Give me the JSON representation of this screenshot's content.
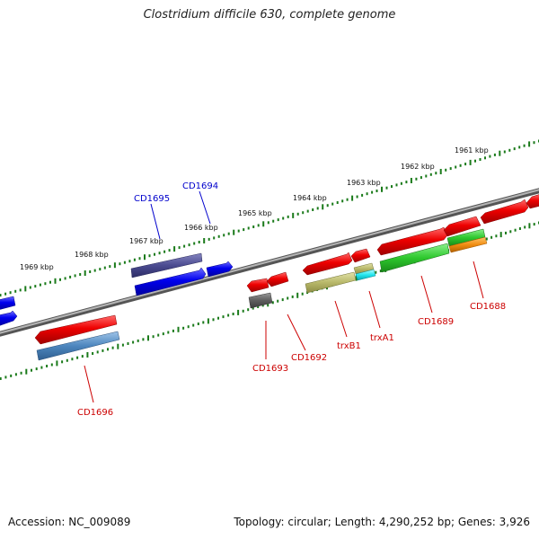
{
  "title": "Clostridium difficile 630, complete genome",
  "footer": {
    "accession": "Accession: NC_009089",
    "topology": "Topology: circular; Length: 4,290,252 bp; Genes: 3,926"
  },
  "scale": {
    "unit": "kbp",
    "ticks": [
      "1961 kbp",
      "1962 kbp",
      "1963 kbp",
      "1964 kbp",
      "1965 kbp",
      "1966 kbp",
      "1967 kbp",
      "1968 kbp",
      "1969 kbp"
    ]
  },
  "genes": {
    "labeled": [
      {
        "name": "CD1695",
        "color": "#0000cc"
      },
      {
        "name": "CD1694",
        "color": "#0000cc"
      },
      {
        "name": "CD1696",
        "color": "#cc0000"
      },
      {
        "name": "CD1693",
        "color": "#cc0000"
      },
      {
        "name": "CD1692",
        "color": "#cc0000"
      },
      {
        "name": "trxB1",
        "color": "#cc0000"
      },
      {
        "name": "trxA1",
        "color": "#cc0000"
      },
      {
        "name": "CD1689",
        "color": "#cc0000"
      },
      {
        "name": "CD1688",
        "color": "#cc0000"
      }
    ]
  },
  "colors": {
    "forward_cds": "#0000ee",
    "reverse_cds": "#ee0000",
    "backbone": "#7a7a7a",
    "tick": "#1a7a1a"
  }
}
